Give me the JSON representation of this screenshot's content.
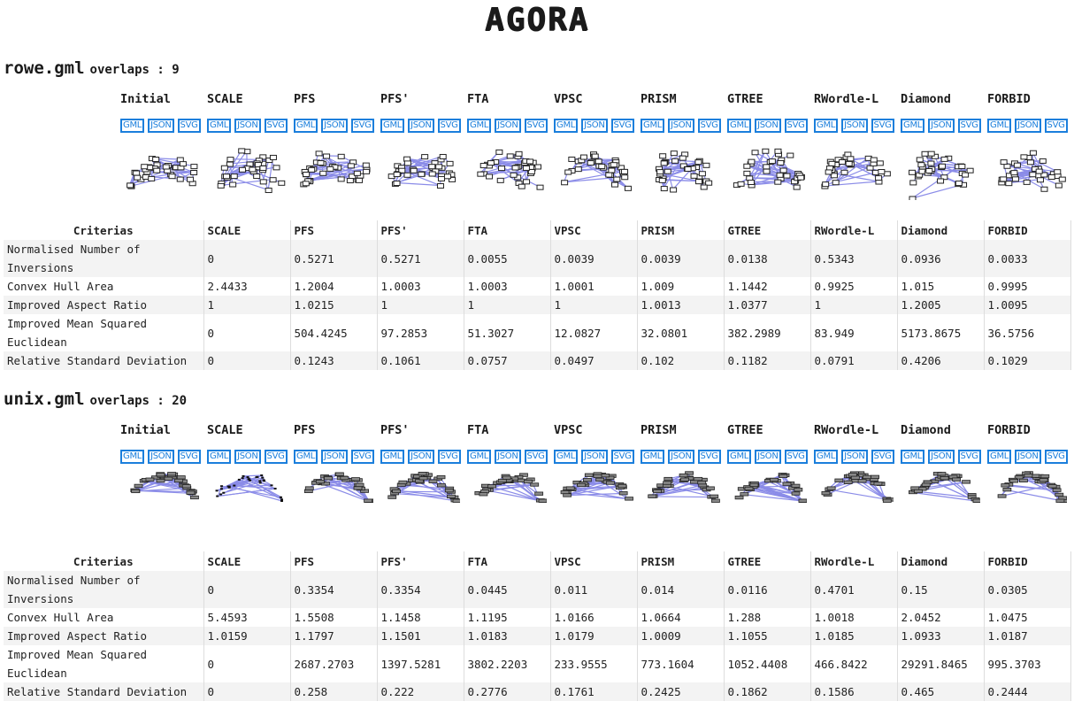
{
  "app": {
    "title": "AGORA"
  },
  "colors": {
    "button_border": "#1b7fdc",
    "edge": "#8b8ce8",
    "node_stroke": "#222222",
    "row_stripe": "#f3f3f3"
  },
  "download_buttons": [
    "GML",
    "JSON",
    "SVG"
  ],
  "algorithms": [
    "Initial",
    "SCALE",
    "PFS",
    "PFS'",
    "FTA",
    "VPSC",
    "PRISM",
    "GTREE",
    "RWordle-L",
    "Diamond",
    "FORBID"
  ],
  "table_columns": [
    "Criterias",
    "SCALE",
    "PFS",
    "PFS'",
    "FTA",
    "VPSC",
    "PRISM",
    "GTREE",
    "RWordle-L",
    "Diamond",
    "FORBID"
  ],
  "sections": [
    {
      "file": "rowe.gml",
      "overlaps_label": "overlaps : 9",
      "rows": [
        {
          "criteria": "Normalised Number of Inversions",
          "values": [
            "0",
            "0.5271",
            "0.5271",
            "0.0055",
            "0.0039",
            "0.0039",
            "0.0138",
            "0.5343",
            "0.0936",
            "0.0033"
          ]
        },
        {
          "criteria": "Convex Hull Area",
          "values": [
            "2.4433",
            "1.2004",
            "1.0003",
            "1.0003",
            "1.0001",
            "1.009",
            "1.1442",
            "0.9925",
            "1.015",
            "0.9995"
          ]
        },
        {
          "criteria": "Improved Aspect Ratio",
          "values": [
            "1",
            "1.0215",
            "1",
            "1",
            "1",
            "1.0013",
            "1.0377",
            "1",
            "1.2005",
            "1.0095"
          ]
        },
        {
          "criteria": "Improved Mean Squared Euclidean",
          "values": [
            "0",
            "504.4245",
            "97.2853",
            "51.3027",
            "12.0827",
            "32.0801",
            "382.2989",
            "83.949",
            "5173.8675",
            "36.5756"
          ]
        },
        {
          "criteria": "Relative Standard Deviation",
          "values": [
            "0",
            "0.1243",
            "0.1061",
            "0.0757",
            "0.0497",
            "0.102",
            "0.1182",
            "0.0791",
            "0.4206",
            "0.1029"
          ]
        }
      ]
    },
    {
      "file": "unix.gml",
      "overlaps_label": "overlaps : 20",
      "rows": [
        {
          "criteria": "Normalised Number of Inversions",
          "values": [
            "0",
            "0.3354",
            "0.3354",
            "0.0445",
            "0.011",
            "0.014",
            "0.0116",
            "0.4701",
            "0.15",
            "0.0305"
          ]
        },
        {
          "criteria": "Convex Hull Area",
          "values": [
            "5.4593",
            "1.5508",
            "1.1458",
            "1.1195",
            "1.0166",
            "1.0664",
            "1.288",
            "1.0018",
            "2.0452",
            "1.0475"
          ]
        },
        {
          "criteria": "Improved Aspect Ratio",
          "values": [
            "1.0159",
            "1.1797",
            "1.1501",
            "1.0183",
            "1.0179",
            "1.0009",
            "1.1055",
            "1.0185",
            "1.0933",
            "1.0187"
          ]
        },
        {
          "criteria": "Improved Mean Squared Euclidean",
          "values": [
            "0",
            "2687.2703",
            "1397.5281",
            "3802.2203",
            "233.9555",
            "773.1604",
            "1052.4408",
            "466.8422",
            "29291.8465",
            "995.3703"
          ]
        },
        {
          "criteria": "Relative Standard Deviation",
          "values": [
            "0",
            "0.258",
            "0.222",
            "0.2776",
            "0.1761",
            "0.2425",
            "0.1862",
            "0.1586",
            "0.465",
            "0.2444"
          ]
        }
      ]
    }
  ]
}
